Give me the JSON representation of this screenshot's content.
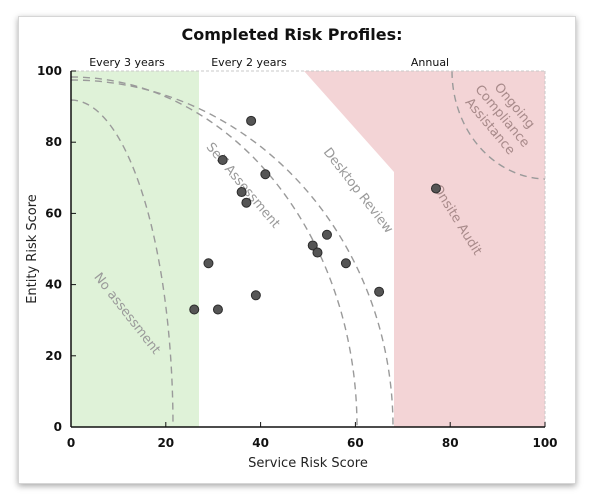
{
  "chart_data": {
    "type": "scatter",
    "title": "Completed Risk Profiles:",
    "xlabel": "Service Risk Score",
    "ylabel": "Entity Risk Score",
    "xlim": [
      0,
      100
    ],
    "ylim": [
      0,
      100
    ],
    "xticks": [
      "0",
      "20",
      "40",
      "60",
      "80",
      "100"
    ],
    "yticks": [
      "0",
      "20",
      "40",
      "60",
      "80",
      "100"
    ],
    "grid": false,
    "frequency_bands": [
      {
        "label": "Every 3 years",
        "x_range": [
          0,
          27
        ],
        "color": "#dff2d8"
      },
      {
        "label": "Every 2 years",
        "x_range": [
          27,
          50
        ],
        "color": "#ffffff"
      },
      {
        "label": "Annual",
        "x_range": [
          50,
          100
        ],
        "color": "#f3d4d6"
      }
    ],
    "zones": [
      {
        "label": "No assessment"
      },
      {
        "label": "Self Assessment"
      },
      {
        "label": "Desktop Review"
      },
      {
        "label": "Onsite Audit"
      },
      {
        "label": "Ongoing Compliance Assistance"
      }
    ],
    "points": [
      {
        "x": 26,
        "y": 33
      },
      {
        "x": 29,
        "y": 46
      },
      {
        "x": 31,
        "y": 33
      },
      {
        "x": 32,
        "y": 75
      },
      {
        "x": 36,
        "y": 66
      },
      {
        "x": 37,
        "y": 63
      },
      {
        "x": 38,
        "y": 86
      },
      {
        "x": 39,
        "y": 37
      },
      {
        "x": 41,
        "y": 71
      },
      {
        "x": 51,
        "y": 51
      },
      {
        "x": 52,
        "y": 49
      },
      {
        "x": 54,
        "y": 54
      },
      {
        "x": 58,
        "y": 46
      },
      {
        "x": 65,
        "y": 38
      },
      {
        "x": 77,
        "y": 67
      }
    ]
  }
}
